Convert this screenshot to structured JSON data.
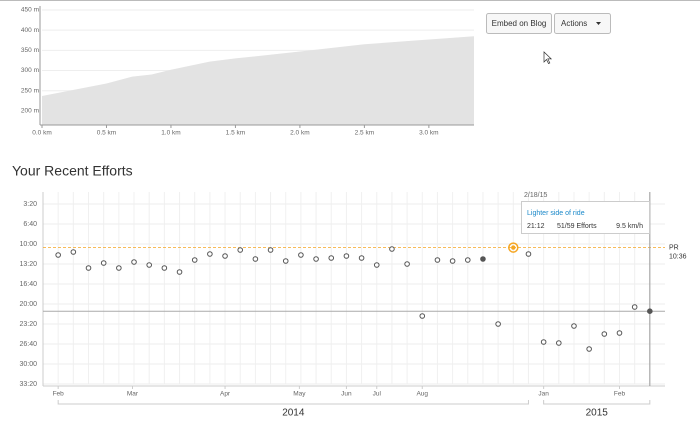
{
  "toolbar": {
    "embed_button": "Embed on Blog",
    "actions_button": "Actions"
  },
  "elevation_chart": {
    "type": "area",
    "x": [
      0,
      0.5,
      0.7,
      0.85,
      1.0,
      1.3,
      1.5,
      2.0,
      2.5,
      3.0,
      3.35
    ],
    "values": [
      237,
      268,
      285,
      290,
      302,
      322,
      330,
      347,
      365,
      377,
      385
    ],
    "color": "#e3e3e3",
    "xlim": [
      0,
      3.35
    ],
    "ylim": [
      165,
      450
    ],
    "xticks": [
      {
        "value": 0,
        "label": "0.0 km"
      },
      {
        "value": 0.5,
        "label": "0.5 km"
      },
      {
        "value": 1.0,
        "label": "1.0 km"
      },
      {
        "value": 1.5,
        "label": "1.5 km"
      },
      {
        "value": 2.0,
        "label": "2.0 km"
      },
      {
        "value": 2.5,
        "label": "2.5 km"
      },
      {
        "value": 3.0,
        "label": "3.0 km"
      }
    ],
    "yticks": [
      {
        "value": 200,
        "label": "200 m"
      },
      {
        "value": 250,
        "label": "250 m"
      },
      {
        "value": 300,
        "label": "300 m"
      },
      {
        "value": 350,
        "label": "350 m"
      },
      {
        "value": 400,
        "label": "400 m"
      },
      {
        "value": 450,
        "label": "450 m"
      }
    ],
    "grid": true
  },
  "efforts_section": {
    "title": "Your Recent Efforts"
  },
  "efforts_chart": {
    "type": "scatter",
    "x": [
      0,
      1,
      2,
      3,
      4,
      5,
      6,
      7,
      8,
      9,
      10,
      11,
      12,
      13,
      14,
      15,
      16,
      17,
      18,
      19,
      20,
      21,
      22,
      23,
      24,
      25,
      26,
      27,
      28,
      29,
      30,
      31,
      32,
      33,
      34,
      35,
      36,
      37,
      38,
      39
    ],
    "values": [
      710,
      680,
      840,
      790,
      840,
      780,
      810,
      840,
      880,
      760,
      700,
      720,
      660,
      750,
      660,
      770,
      710,
      750,
      740,
      720,
      740,
      810,
      650,
      800,
      1320,
      760,
      770,
      760,
      750,
      1400,
      636,
      700,
      1580,
      1590,
      1420,
      1650,
      1500,
      1490,
      1230,
      1272
    ],
    "color": "#555555",
    "highlight_color": "#f5a623",
    "highlight_index": 30,
    "current_index": 39,
    "filled_indices": [
      28,
      39
    ],
    "xlim": [
      -1,
      40
    ],
    "ylim": [
      2000,
      80
    ],
    "xticks": [
      {
        "value": 0,
        "label": "Feb"
      },
      {
        "value": 4.9,
        "label": "Mar"
      },
      {
        "value": 11,
        "label": "Apr"
      },
      {
        "value": 15.9,
        "label": "May"
      },
      {
        "value": 19,
        "label": "Jun"
      },
      {
        "value": 21,
        "label": "Jul"
      },
      {
        "value": 24,
        "label": "Aug"
      },
      {
        "value": 32,
        "label": "Jan"
      },
      {
        "value": 37,
        "label": "Feb"
      }
    ],
    "yticks": [
      {
        "value": 200,
        "label": "3:20"
      },
      {
        "value": 400,
        "label": "6:40"
      },
      {
        "value": 600,
        "label": "10:00"
      },
      {
        "value": 800,
        "label": "13:20"
      },
      {
        "value": 1000,
        "label": "16:40"
      },
      {
        "value": 1200,
        "label": "20:00"
      },
      {
        "value": 1400,
        "label": "23:20"
      },
      {
        "value": 1600,
        "label": "26:40"
      },
      {
        "value": 1800,
        "label": "30:00"
      },
      {
        "value": 2000,
        "label": "33:20"
      }
    ],
    "years": [
      {
        "label": "2014",
        "start": 0,
        "end": 31
      },
      {
        "label": "2015",
        "start": 32,
        "end": 39
      }
    ],
    "pr": {
      "label": "PR",
      "value": 636,
      "value_label": "10:36"
    },
    "grid": true
  },
  "tooltip": {
    "date": "2/18/15",
    "name": "Lighter side of ride",
    "time": "21:12",
    "rank": "51/59 Efforts",
    "speed": "9.5 km/h"
  }
}
